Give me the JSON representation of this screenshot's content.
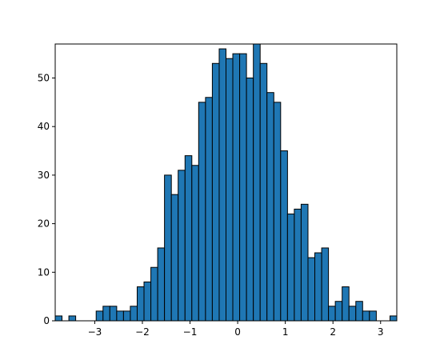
{
  "chart_data": {
    "type": "histogram",
    "bins": [
      -3.83,
      -3.687,
      -3.543,
      -3.4,
      -3.256,
      -3.113,
      -2.97,
      -2.826,
      -2.683,
      -2.539,
      -2.396,
      -2.253,
      -2.109,
      -1.966,
      -1.822,
      -1.679,
      -1.536,
      -1.392,
      -1.249,
      -1.105,
      -0.962,
      -0.819,
      -0.675,
      -0.532,
      -0.388,
      -0.245,
      -0.102,
      0.042,
      0.185,
      0.329,
      0.472,
      0.615,
      0.759,
      0.902,
      1.046,
      1.189,
      1.332,
      1.476,
      1.619,
      1.763,
      1.906,
      2.049,
      2.193,
      2.336,
      2.48,
      2.623,
      2.766,
      2.91,
      3.053,
      3.197,
      3.34
    ],
    "values": [
      1,
      0,
      1,
      0,
      0,
      0,
      2,
      3,
      3,
      2,
      2,
      3,
      7,
      8,
      11,
      15,
      30,
      26,
      31,
      34,
      32,
      45,
      46,
      53,
      56,
      54,
      55,
      55,
      50,
      57,
      53,
      47,
      45,
      35,
      22,
      23,
      24,
      13,
      14,
      15,
      3,
      4,
      7,
      3,
      4,
      2,
      2,
      0,
      0,
      1
    ],
    "color": "#1f77b4",
    "edgecolor": "#000000",
    "xlim": [
      -3.83,
      3.34
    ],
    "xticks": [
      {
        "value": -3,
        "label": "−3"
      },
      {
        "value": -2,
        "label": "−2"
      },
      {
        "value": -1,
        "label": "−1"
      },
      0,
      1,
      2,
      3
    ],
    "ylim": [
      0,
      57
    ],
    "yticks": [
      0,
      10,
      20,
      30,
      40,
      50
    ],
    "grid": false
  }
}
